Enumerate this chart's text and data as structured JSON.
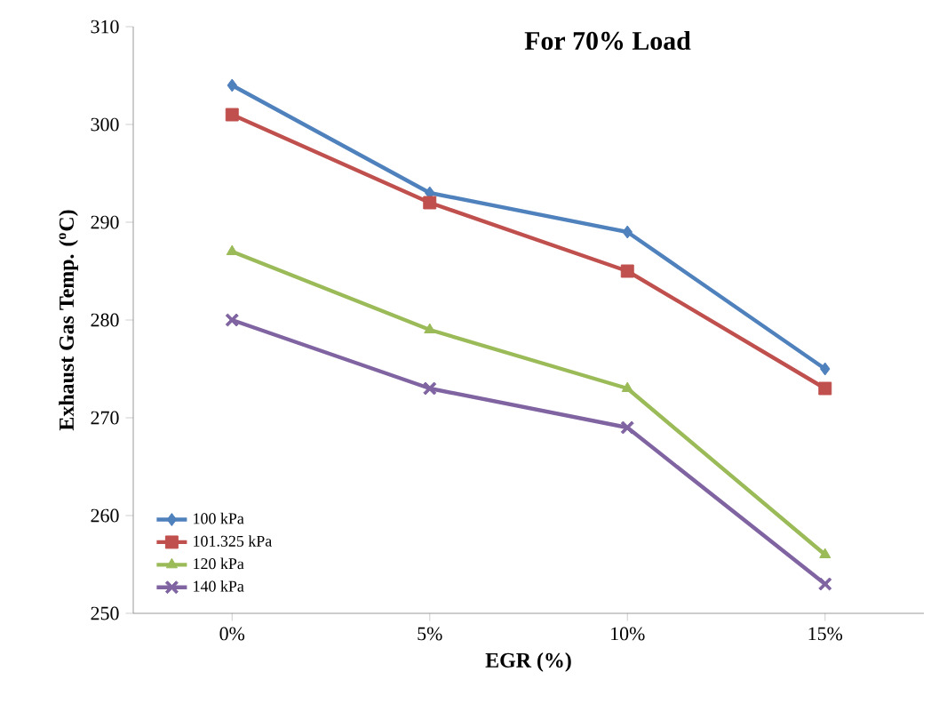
{
  "chart_data": {
    "type": "line",
    "title": "For 70% Load",
    "xlabel": "EGR  (%)",
    "ylabel": "Exhaust  Gas  Temp.  ($^{o}$C)",
    "categories": [
      "0%",
      "5%",
      "10%",
      "15%"
    ],
    "series": [
      {
        "name": "100 kPa",
        "color": "#4f81bd",
        "marker": "diamond",
        "values": [
          304,
          293,
          289,
          275
        ]
      },
      {
        "name": "101.325 kPa",
        "color": "#c0504d",
        "marker": "square",
        "values": [
          301,
          292,
          285,
          273
        ]
      },
      {
        "name": "120 kPa",
        "color": "#9bbb59",
        "marker": "triangle",
        "values": [
          287,
          279,
          273,
          256
        ]
      },
      {
        "name": "140 kPa",
        "color": "#8064a2",
        "marker": "cross",
        "values": [
          280,
          273,
          269,
          253
        ]
      }
    ],
    "ylim": [
      250,
      310
    ],
    "yticks": [
      250,
      260,
      270,
      280,
      290,
      300,
      310
    ],
    "grid": false,
    "legend": "bottom left",
    "line_style": "solid"
  }
}
